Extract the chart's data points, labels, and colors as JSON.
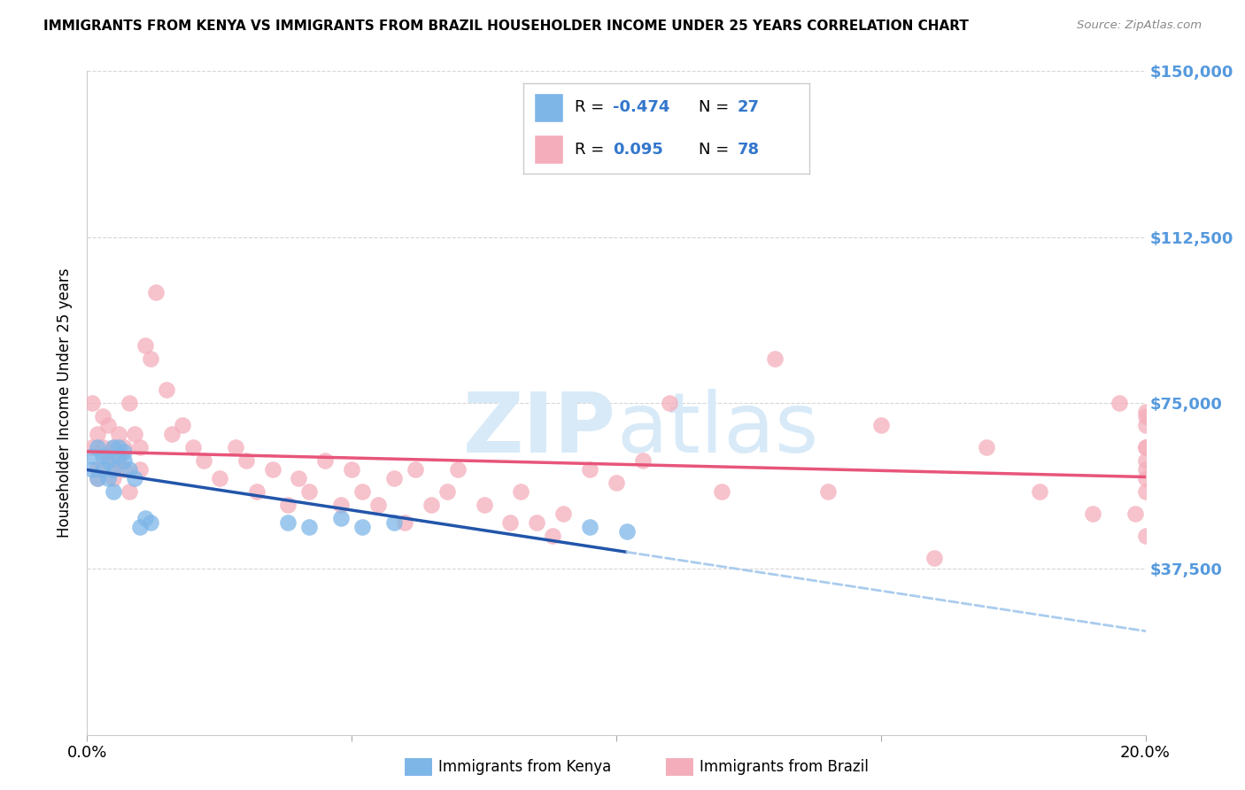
{
  "title": "IMMIGRANTS FROM KENYA VS IMMIGRANTS FROM BRAZIL HOUSEHOLDER INCOME UNDER 25 YEARS CORRELATION CHART",
  "source": "Source: ZipAtlas.com",
  "ylabel": "Householder Income Under 25 years",
  "xlim": [
    0.0,
    0.2
  ],
  "ylim": [
    0,
    150000
  ],
  "yticks": [
    0,
    37500,
    75000,
    112500,
    150000
  ],
  "ytick_labels": [
    "",
    "$37,500",
    "$75,000",
    "$112,500",
    "$150,000"
  ],
  "xticks": [
    0.0,
    0.05,
    0.1,
    0.15,
    0.2
  ],
  "xtick_labels": [
    "0.0%",
    "",
    "",
    "",
    "20.0%"
  ],
  "legend_kenya_r": "-0.474",
  "legend_kenya_n": "27",
  "legend_brazil_r": "0.095",
  "legend_brazil_n": "78",
  "kenya_color": "#7EB6E8",
  "brazil_color": "#F4AEBB",
  "kenya_line_color": "#2255AA",
  "brazil_line_color": "#E8557A",
  "kenya_dashed_color": "#AACCEE",
  "background_color": "#FFFFFF",
  "grid_color": "#CCCCCC",
  "watermark_color": "#D8EAF8",
  "kenya_x": [
    0.001,
    0.001,
    0.002,
    0.002,
    0.003,
    0.003,
    0.004,
    0.004,
    0.005,
    0.005,
    0.005,
    0.006,
    0.006,
    0.007,
    0.007,
    0.008,
    0.009,
    0.01,
    0.011,
    0.012,
    0.038,
    0.042,
    0.048,
    0.052,
    0.058,
    0.095,
    0.102
  ],
  "kenya_y": [
    60000,
    63000,
    58000,
    65000,
    60000,
    63000,
    62000,
    58000,
    65000,
    60000,
    55000,
    63000,
    65000,
    62000,
    64000,
    60000,
    58000,
    47000,
    49000,
    48000,
    48000,
    47000,
    49000,
    47000,
    48000,
    47000,
    46000
  ],
  "brazil_x": [
    0.001,
    0.001,
    0.002,
    0.002,
    0.002,
    0.003,
    0.003,
    0.004,
    0.004,
    0.005,
    0.005,
    0.005,
    0.006,
    0.006,
    0.007,
    0.007,
    0.008,
    0.008,
    0.009,
    0.01,
    0.01,
    0.011,
    0.012,
    0.013,
    0.015,
    0.016,
    0.018,
    0.02,
    0.022,
    0.025,
    0.028,
    0.03,
    0.032,
    0.035,
    0.038,
    0.04,
    0.042,
    0.045,
    0.048,
    0.05,
    0.052,
    0.055,
    0.058,
    0.06,
    0.062,
    0.065,
    0.068,
    0.07,
    0.075,
    0.08,
    0.082,
    0.085,
    0.088,
    0.09,
    0.095,
    0.1,
    0.105,
    0.11,
    0.12,
    0.13,
    0.14,
    0.15,
    0.16,
    0.17,
    0.18,
    0.19,
    0.195,
    0.198,
    0.2,
    0.2,
    0.2,
    0.2,
    0.2,
    0.2,
    0.2,
    0.2,
    0.2,
    0.2
  ],
  "brazil_y": [
    65000,
    75000,
    60000,
    68000,
    58000,
    65000,
    72000,
    63000,
    70000,
    60000,
    65000,
    58000,
    68000,
    62000,
    65000,
    60000,
    75000,
    55000,
    68000,
    65000,
    60000,
    88000,
    85000,
    100000,
    78000,
    68000,
    70000,
    65000,
    62000,
    58000,
    65000,
    62000,
    55000,
    60000,
    52000,
    58000,
    55000,
    62000,
    52000,
    60000,
    55000,
    52000,
    58000,
    48000,
    60000,
    52000,
    55000,
    60000,
    52000,
    48000,
    55000,
    48000,
    45000,
    50000,
    60000,
    57000,
    62000,
    75000,
    55000,
    85000,
    55000,
    70000,
    40000,
    65000,
    55000,
    50000,
    75000,
    50000,
    70000,
    65000,
    55000,
    60000,
    58000,
    45000,
    65000,
    62000,
    72000,
    73000
  ]
}
